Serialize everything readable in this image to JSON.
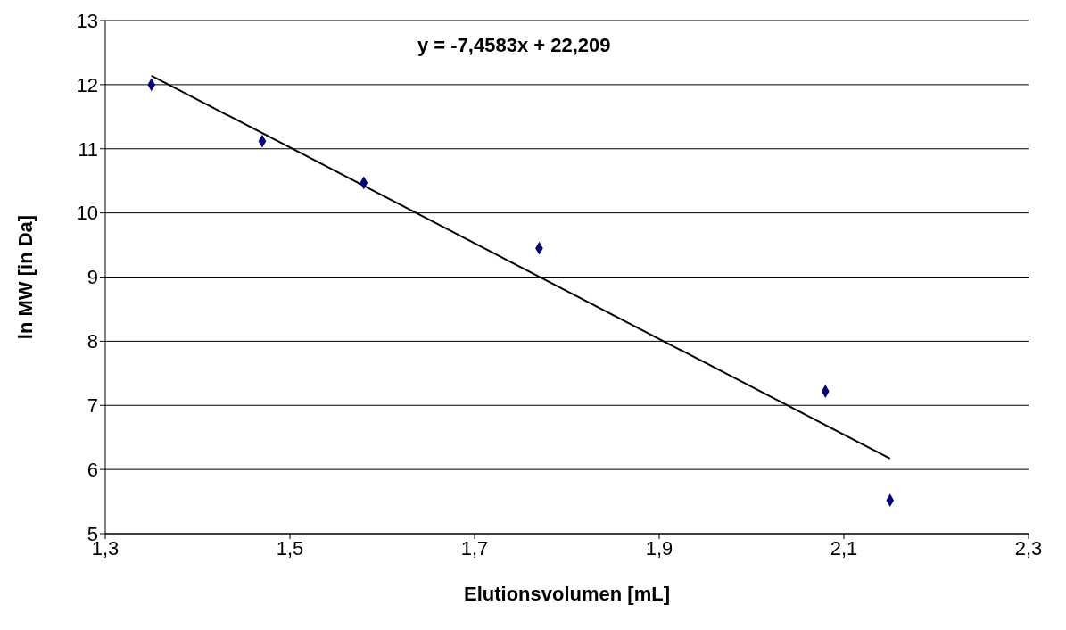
{
  "chart_data": {
    "type": "scatter",
    "xlabel": "Elutionsvolumen [mL]",
    "ylabel": "ln MW [in Da]",
    "annotations": [
      "y = -7,4583x + 22,209"
    ],
    "x": [
      1.35,
      1.47,
      1.58,
      1.77,
      2.08,
      2.15
    ],
    "series": [
      {
        "color": "#000080",
        "marker": "diamond",
        "values": [
          12.0,
          11.12,
          10.47,
          9.45,
          7.22,
          5.52
        ]
      },
      {
        "type": "line",
        "color": "#000000",
        "marker": "none",
        "line_style": "solid",
        "x": [
          1.35,
          2.15
        ],
        "values": [
          12.14,
          6.17
        ]
      }
    ],
    "xlim": [
      1.3,
      2.3
    ],
    "xticks": [
      {
        "value": 1.3,
        "label": "1,3"
      },
      {
        "value": 1.5,
        "label": "1,5"
      },
      {
        "value": 1.7,
        "label": "1,7"
      },
      {
        "value": 1.9,
        "label": "1,9"
      },
      {
        "value": 2.1,
        "label": "2,1"
      },
      {
        "value": 2.3,
        "label": "2,3"
      }
    ],
    "ylim": [
      5,
      13
    ],
    "yticks": [
      5,
      6,
      7,
      8,
      9,
      10,
      11,
      12,
      13
    ],
    "grid": "y"
  }
}
